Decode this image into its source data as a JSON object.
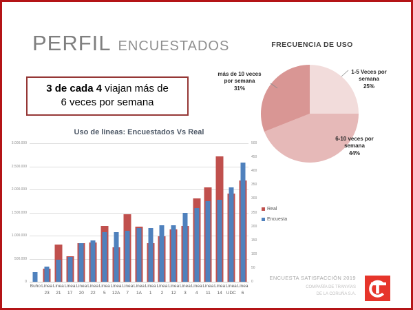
{
  "slide": {
    "title_main": "PERFIL",
    "title_sub": "ENCUESTADOS",
    "callout_bold": "3 de cada 4",
    "callout_line1_rest": " viajan  más de",
    "callout_line2": "6 veces por semana"
  },
  "legend": {
    "real_label": "Real",
    "encuesta_label": "Encuesta"
  },
  "footer": {
    "line1": "ENCUESTA SATISFACCIÓN 2019",
    "line2": "COMPAÑÍA DE TRANVÍAS",
    "line3": "DE LA CORUÑA S.A.",
    "logo_color": "#e6352b"
  },
  "chart_data": [
    {
      "type": "pie",
      "title": "FRECUENCIA  DE USO",
      "labels": [
        "1-5 Veces por semana",
        "6-10 veces por semana",
        "más de 10 veces por semana"
      ],
      "values": [
        25,
        44,
        31
      ],
      "unit": "%",
      "colors": [
        "#f2dcdb",
        "#e6b9b8",
        "#d99694"
      ],
      "start_angle_deg": 0,
      "direction": "clockwise",
      "label_lines": [
        [
          "1-5 Veces por",
          "semana",
          "25%"
        ],
        [
          "6-10 veces por",
          "semana",
          "44%"
        ],
        [
          "más de 10 veces",
          "por semana",
          "31%"
        ]
      ]
    },
    {
      "type": "bar",
      "title": "Uso de lineas: Encuestados Vs Real",
      "categories": [
        "Buho",
        "Linea 23",
        "Linea 21",
        "Linea 17",
        "Linea 20",
        "Linea 22",
        "Linea 5",
        "Linea 12A",
        "Linea 7",
        "Linea 1A",
        "Linea 1",
        "Linea 2",
        "Linea 12",
        "Linea 3",
        "Linea 4",
        "Linea 11",
        "Linea 14",
        "Linea UDC",
        "Linea 6"
      ],
      "series": [
        {
          "name": "Real",
          "axis": "left",
          "color": "#c0504d",
          "values": [
            0,
            290000,
            800000,
            550000,
            830000,
            850000,
            1210000,
            750000,
            1470000,
            1190000,
            840000,
            980000,
            1130000,
            1210000,
            1810000,
            2050000,
            2710000,
            1910000,
            2190000
          ]
        },
        {
          "name": "Encuesta",
          "axis": "right",
          "color": "#4f81bd",
          "values": [
            35,
            55,
            80,
            90,
            140,
            150,
            180,
            180,
            185,
            195,
            195,
            205,
            205,
            250,
            265,
            290,
            295,
            340,
            430
          ]
        }
      ],
      "left_axis": {
        "min": 0,
        "max": 3000000,
        "step": 500000,
        "tick_labels": [
          "3.000.000",
          "2.500.000",
          "2.000.000",
          "1.500.000",
          "1.000.000",
          "500.000",
          "0"
        ]
      },
      "right_axis": {
        "min": 0,
        "max": 500,
        "step": 50,
        "tick_labels": [
          "500",
          "450",
          "400",
          "350",
          "300",
          "250",
          "200",
          "150",
          "100",
          "50",
          "0"
        ]
      },
      "grid": true,
      "legend_position": "right"
    }
  ]
}
